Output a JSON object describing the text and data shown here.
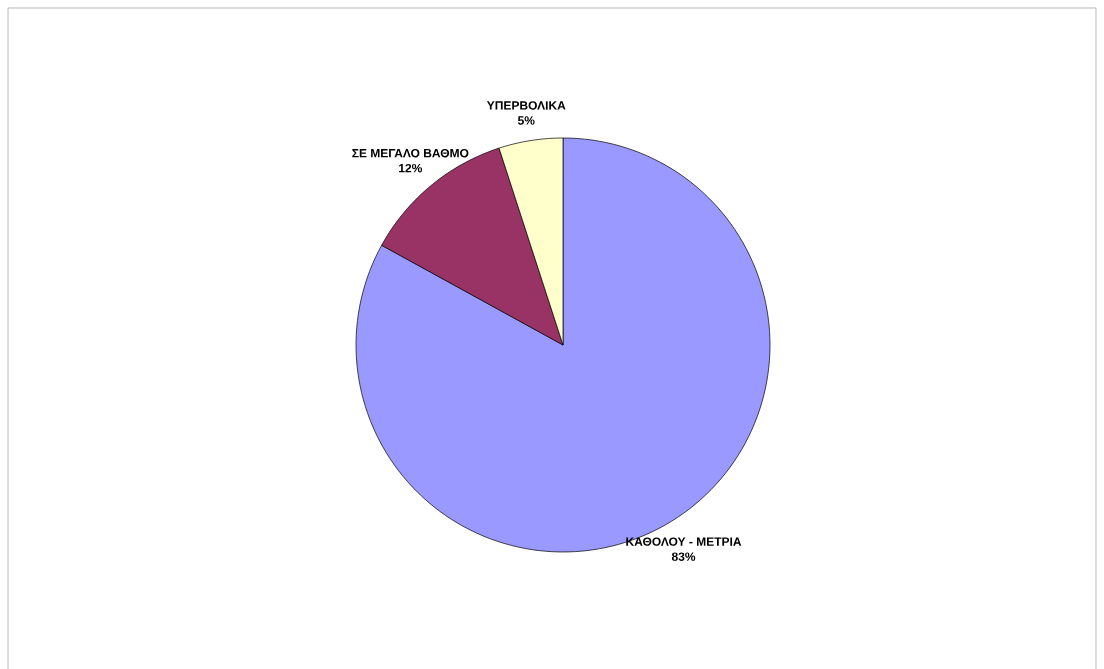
{
  "chart_data": {
    "type": "pie",
    "categories": [
      "ΚΑΘΟΛΟΥ - ΜΕΤΡΙΑ",
      "ΣΕ ΜΕΓΑΛΟ ΒΑΘΜΟ",
      "ΥΠΕΡΒΟΛΙΚΑ"
    ],
    "values": [
      83,
      12,
      5
    ],
    "colors": [
      "#9999ff",
      "#993366",
      "#ffffcc"
    ],
    "value_labels": [
      "83%",
      "12%",
      "5%"
    ]
  }
}
